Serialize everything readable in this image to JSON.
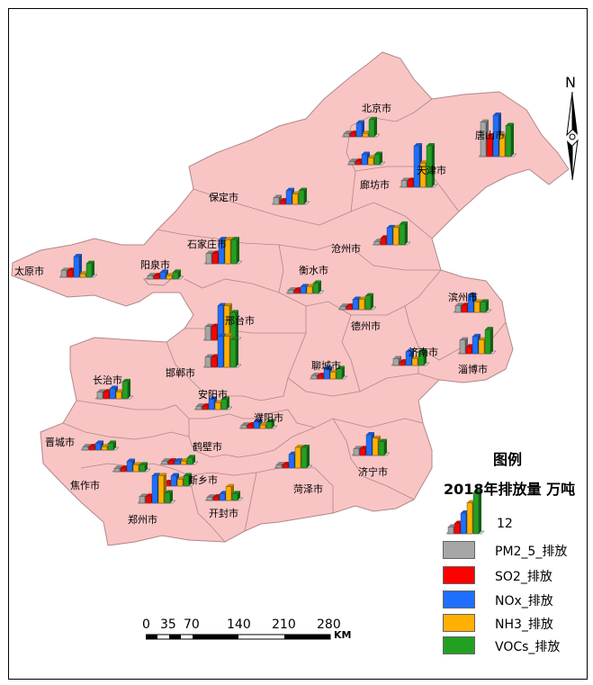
{
  "legend": {
    "title": "图例",
    "subtitle": "2018年排放量 万吨",
    "scale_value": "12",
    "items": [
      {
        "label": "PM2_5_排放",
        "color": "#a6a6a6"
      },
      {
        "label": "SO2_排放",
        "color": "#ff0000"
      },
      {
        "label": "NOx_排放",
        "color": "#1f6fff"
      },
      {
        "label": "NH3_排放",
        "color": "#ffb000"
      },
      {
        "label": "VOCs_排放",
        "color": "#22a022"
      }
    ]
  },
  "north_arrow": "N",
  "scale_bar": {
    "ticks": [
      "0",
      "35",
      "70",
      "140",
      "210",
      "280"
    ],
    "unit": "KM"
  },
  "map_colors": {
    "fill": "#f9c4c4",
    "border": "#b08888"
  },
  "cities": [
    {
      "name": "北京市",
      "values": [
        1,
        1,
        4,
        1,
        5
      ]
    },
    {
      "name": "唐山市",
      "values": [
        10,
        6,
        12,
        6,
        9
      ]
    },
    {
      "name": "天津市",
      "values": [
        2,
        2,
        12,
        7,
        12
      ]
    },
    {
      "name": "廊坊市",
      "values": [
        1,
        1,
        3,
        2,
        3
      ]
    },
    {
      "name": "保定市",
      "values": [
        2,
        1,
        4,
        3,
        4
      ]
    },
    {
      "name": "石家庄市",
      "values": [
        3,
        3,
        7,
        7,
        7
      ]
    },
    {
      "name": "沧州市",
      "values": [
        1,
        2,
        5,
        5,
        6
      ]
    },
    {
      "name": "太原市",
      "values": [
        2,
        2,
        6,
        1,
        4
      ]
    },
    {
      "name": "阳泉市",
      "values": [
        1,
        1,
        2,
        1,
        2
      ]
    },
    {
      "name": "衡水市",
      "values": [
        1,
        1,
        2,
        2,
        3
      ]
    },
    {
      "name": "邢台市",
      "values": [
        4,
        4,
        10,
        10,
        8
      ]
    },
    {
      "name": "滨州市",
      "values": [
        2,
        2,
        5,
        3,
        3
      ]
    },
    {
      "name": "德州市",
      "values": [
        1,
        1,
        3,
        3,
        4
      ]
    },
    {
      "name": "济南市",
      "values": [
        2,
        1,
        4,
        2,
        4
      ]
    },
    {
      "name": "淄博市",
      "values": [
        4,
        2,
        5,
        4,
        7
      ]
    },
    {
      "name": "聊城市",
      "values": [
        1,
        1,
        3,
        2,
        3
      ]
    },
    {
      "name": "邯郸市",
      "values": [
        3,
        3,
        9,
        9,
        8
      ]
    },
    {
      "name": "长治市",
      "values": [
        2,
        2,
        3,
        2,
        5
      ]
    },
    {
      "name": "安阳市",
      "values": [
        1,
        1,
        3,
        2,
        3
      ]
    },
    {
      "name": "濮阳市",
      "values": [
        1,
        1,
        2,
        1,
        2
      ]
    },
    {
      "name": "晋城市",
      "values": [
        1,
        1,
        2,
        1,
        2
      ]
    },
    {
      "name": "鹤壁市",
      "values": [
        1,
        1,
        1,
        1,
        2
      ]
    },
    {
      "name": "菏泽市",
      "values": [
        1,
        1,
        4,
        6,
        6
      ]
    },
    {
      "name": "济宁市",
      "values": [
        2,
        2,
        6,
        5,
        4
      ]
    },
    {
      "name": "焦作市",
      "values": [
        1,
        1,
        3,
        2,
        2
      ]
    },
    {
      "name": "新乡市",
      "values": [
        1,
        1,
        3,
        2,
        3
      ]
    },
    {
      "name": "郑州市",
      "values": [
        2,
        2,
        8,
        8,
        3
      ]
    },
    {
      "name": "开封市",
      "values": [
        1,
        1,
        2,
        4,
        2
      ]
    }
  ]
}
